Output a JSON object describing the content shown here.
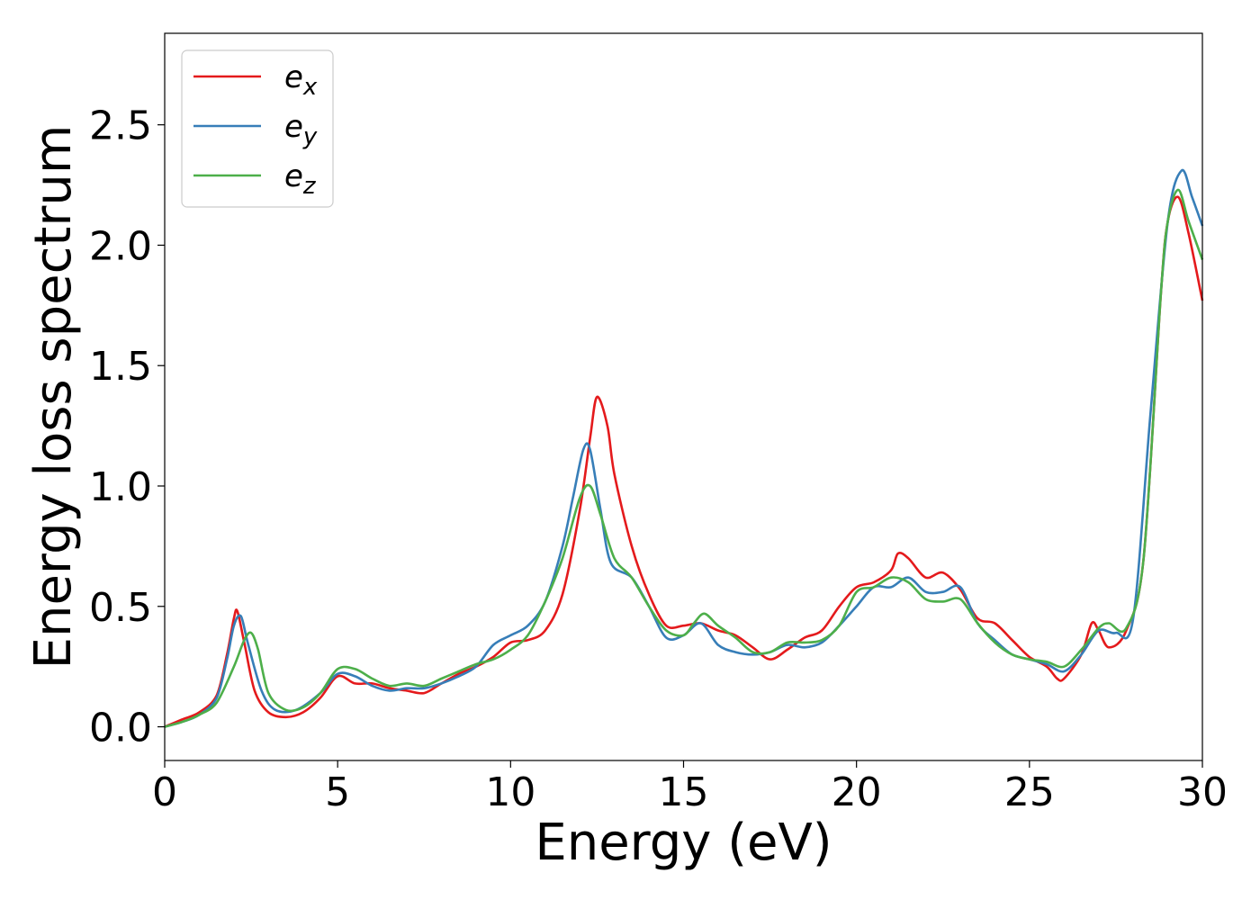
{
  "chart_data": {
    "type": "line",
    "xlabel": "Energy (eV)",
    "ylabel": "Energy loss spectrum",
    "xlim": [
      0,
      30
    ],
    "ylim": [
      -0.14,
      2.88
    ],
    "xticks": [
      0,
      5,
      10,
      15,
      20,
      25,
      30
    ],
    "xtick_labels": [
      "0",
      "5",
      "10",
      "15",
      "20",
      "25",
      "30"
    ],
    "yticks": [
      0.0,
      0.5,
      1.0,
      1.5,
      2.0,
      2.5
    ],
    "ytick_labels": [
      "0.0",
      "0.5",
      "1.0",
      "1.5",
      "2.0",
      "2.5"
    ],
    "grid": false,
    "legend_position": "top-left",
    "series": [
      {
        "name": "e_x",
        "label_base": "e",
        "label_sub": "x",
        "color": "#e41a1c",
        "x": [
          0,
          0.5,
          1.0,
          1.5,
          1.8,
          2.0,
          2.1,
          2.3,
          2.6,
          3.0,
          3.5,
          4.0,
          4.5,
          5.0,
          5.5,
          6.0,
          6.5,
          7.0,
          7.5,
          8.0,
          8.5,
          9.0,
          9.5,
          10.0,
          10.5,
          11.0,
          11.5,
          12.0,
          12.3,
          12.5,
          12.8,
          13.0,
          13.5,
          14.0,
          14.5,
          15.0,
          15.5,
          16.0,
          16.5,
          17.0,
          17.5,
          18.0,
          18.5,
          19.0,
          19.5,
          20.0,
          20.5,
          21.0,
          21.2,
          21.5,
          22.0,
          22.5,
          23.0,
          23.5,
          24.0,
          24.5,
          25.0,
          25.5,
          25.8,
          26.0,
          26.5,
          26.8,
          27.0,
          27.3,
          27.8,
          28.3,
          28.8,
          29.0,
          29.3,
          29.6,
          30.0
        ],
        "y": [
          0,
          0.03,
          0.06,
          0.13,
          0.3,
          0.45,
          0.48,
          0.35,
          0.15,
          0.06,
          0.04,
          0.06,
          0.12,
          0.21,
          0.18,
          0.18,
          0.16,
          0.15,
          0.14,
          0.18,
          0.22,
          0.25,
          0.29,
          0.35,
          0.36,
          0.4,
          0.55,
          0.9,
          1.2,
          1.37,
          1.25,
          1.05,
          0.75,
          0.55,
          0.42,
          0.42,
          0.43,
          0.4,
          0.38,
          0.33,
          0.28,
          0.32,
          0.37,
          0.4,
          0.5,
          0.58,
          0.6,
          0.65,
          0.72,
          0.7,
          0.62,
          0.64,
          0.57,
          0.45,
          0.43,
          0.36,
          0.29,
          0.25,
          0.2,
          0.2,
          0.3,
          0.43,
          0.4,
          0.33,
          0.4,
          0.7,
          1.8,
          2.1,
          2.2,
          2.05,
          1.77
        ]
      },
      {
        "name": "e_y",
        "label_base": "e",
        "label_sub": "y",
        "color": "#377eb8",
        "x": [
          0,
          0.5,
          1.0,
          1.5,
          1.8,
          2.0,
          2.2,
          2.4,
          2.8,
          3.2,
          3.8,
          4.5,
          5.0,
          5.5,
          6.0,
          6.5,
          7.0,
          7.5,
          8.0,
          8.5,
          9.0,
          9.5,
          10.0,
          10.5,
          11.0,
          11.5,
          11.8,
          12.1,
          12.3,
          12.6,
          12.9,
          13.5,
          14.0,
          14.5,
          15.0,
          15.5,
          16.0,
          16.5,
          17.0,
          17.5,
          18.0,
          18.5,
          19.0,
          19.5,
          20.0,
          20.5,
          21.0,
          21.5,
          22.0,
          22.5,
          23.0,
          23.5,
          24.0,
          24.5,
          25.0,
          25.5,
          26.0,
          26.5,
          27.0,
          27.5,
          28.0,
          28.5,
          29.0,
          29.4,
          29.7,
          30.0
        ],
        "y": [
          0,
          0.02,
          0.05,
          0.12,
          0.28,
          0.42,
          0.46,
          0.35,
          0.15,
          0.07,
          0.07,
          0.14,
          0.22,
          0.21,
          0.17,
          0.15,
          0.16,
          0.16,
          0.18,
          0.21,
          0.25,
          0.34,
          0.38,
          0.42,
          0.52,
          0.75,
          0.95,
          1.15,
          1.15,
          0.9,
          0.68,
          0.62,
          0.5,
          0.37,
          0.38,
          0.43,
          0.34,
          0.31,
          0.3,
          0.31,
          0.34,
          0.33,
          0.35,
          0.42,
          0.5,
          0.58,
          0.58,
          0.62,
          0.56,
          0.56,
          0.58,
          0.43,
          0.36,
          0.3,
          0.28,
          0.26,
          0.23,
          0.3,
          0.4,
          0.39,
          0.45,
          1.3,
          2.1,
          2.31,
          2.2,
          2.08
        ]
      },
      {
        "name": "e_z",
        "label_base": "e",
        "label_sub": "z",
        "color": "#4daf4a",
        "x": [
          0,
          0.5,
          1.0,
          1.5,
          2.0,
          2.3,
          2.5,
          2.7,
          3.0,
          3.5,
          4.0,
          4.5,
          5.0,
          5.5,
          6.0,
          6.5,
          7.0,
          7.5,
          8.0,
          8.5,
          9.0,
          9.5,
          10.0,
          10.5,
          11.0,
          11.5,
          12.0,
          12.3,
          12.6,
          13.0,
          13.5,
          14.0,
          14.5,
          15.0,
          15.3,
          15.6,
          16.0,
          16.5,
          17.0,
          17.5,
          18.0,
          18.5,
          19.0,
          19.5,
          20.0,
          20.5,
          21.0,
          21.5,
          22.0,
          22.5,
          23.0,
          23.5,
          24.0,
          24.5,
          25.0,
          25.5,
          26.0,
          26.5,
          27.0,
          27.3,
          27.8,
          28.3,
          28.8,
          29.0,
          29.3,
          29.6,
          30.0
        ],
        "y": [
          0,
          0.02,
          0.05,
          0.1,
          0.25,
          0.36,
          0.39,
          0.32,
          0.14,
          0.07,
          0.08,
          0.14,
          0.24,
          0.24,
          0.2,
          0.17,
          0.18,
          0.17,
          0.2,
          0.23,
          0.26,
          0.28,
          0.32,
          0.38,
          0.52,
          0.7,
          0.95,
          1.0,
          0.88,
          0.7,
          0.62,
          0.5,
          0.4,
          0.38,
          0.43,
          0.47,
          0.42,
          0.37,
          0.31,
          0.31,
          0.35,
          0.35,
          0.36,
          0.42,
          0.56,
          0.58,
          0.62,
          0.6,
          0.53,
          0.52,
          0.53,
          0.43,
          0.35,
          0.3,
          0.28,
          0.27,
          0.25,
          0.32,
          0.41,
          0.43,
          0.41,
          0.7,
          1.8,
          2.1,
          2.23,
          2.1,
          1.94
        ]
      }
    ]
  }
}
